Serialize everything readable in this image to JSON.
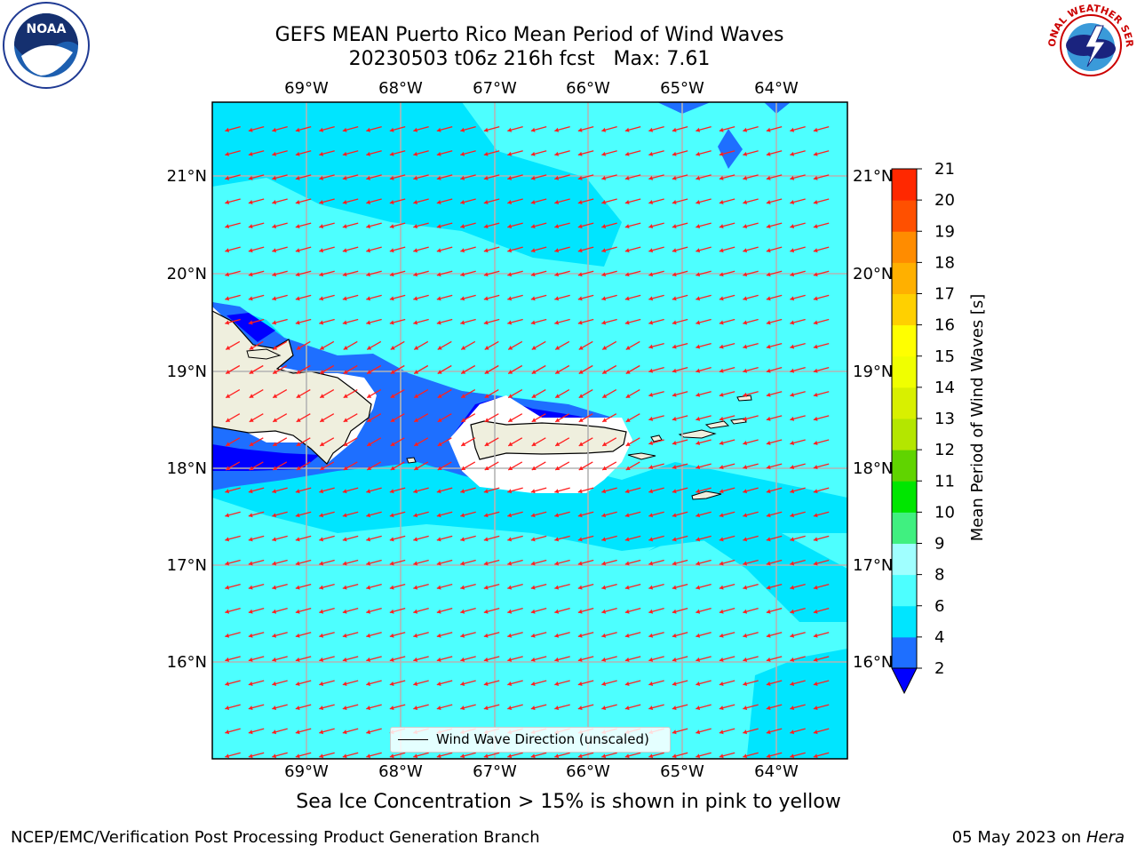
{
  "header": {
    "title_line1": "GEFS MEAN Puerto Rico Mean Period of Wind Waves",
    "title_line2": "20230503 t06z 216h fcst   Max: 7.61"
  },
  "logos": {
    "left": "NOAA",
    "left_ring_text": "NATIONAL OCEANIC AND ATMOSPHERIC ADMINISTRATION · U.S. DEPARTMENT OF COMMERCE",
    "right_ring_text": "NATIONAL WEATHER SERVICE"
  },
  "map": {
    "lon_labels": [
      "69°W",
      "68°W",
      "67°W",
      "66°W",
      "65°W",
      "64°W"
    ],
    "lat_labels": [
      "21°N",
      "20°N",
      "19°N",
      "18°N",
      "17°N",
      "16°N"
    ],
    "legend_label": "Wind Wave Direction (unscaled)"
  },
  "colorbar": {
    "label": "Mean Period of Wind Waves [s]",
    "ticks": [
      "2",
      "4",
      "6",
      "8",
      "9",
      "10",
      "11",
      "12",
      "13",
      "14",
      "15",
      "16",
      "17",
      "18",
      "19",
      "20",
      "21"
    ],
    "colors": [
      "#1e6fff",
      "#00e5ff",
      "#4dffff",
      "#a0ffff",
      "#40f080",
      "#00e600",
      "#60d400",
      "#b4e600",
      "#d8f000",
      "#f0ff00",
      "#ffff00",
      "#ffd000",
      "#ffb000",
      "#ff8c00",
      "#ff5000",
      "#ff2800",
      "#ff0000"
    ],
    "under_color": "#0000ff"
  },
  "footer": {
    "ice_note": "Sea Ice Concentration > 15% is shown in pink to yellow",
    "branch": "NCEP/EMC/Verification Post Processing Product Generation Branch",
    "date": "05 May 2023 on",
    "host": "Hera"
  }
}
